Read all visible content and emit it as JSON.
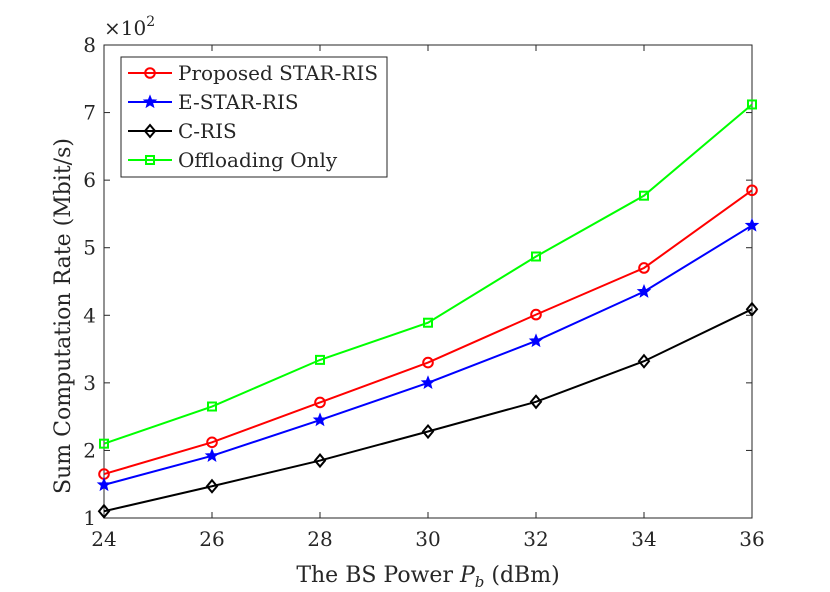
{
  "chart_data": {
    "type": "line",
    "title": "",
    "xlabel_prefix": "The BS Power ",
    "xlabel_var": "P",
    "xlabel_sub": "b",
    "xlabel_suffix": " (dBm)",
    "ylabel": "Sum Computation Rate (Mbit/s)",
    "y_multiplier": "×10",
    "y_multiplier_exp": "2",
    "x": [
      24,
      26,
      28,
      30,
      32,
      34,
      36
    ],
    "xlim": [
      24,
      36
    ],
    "ylim": [
      1,
      8
    ],
    "xticks": [
      "24",
      "26",
      "28",
      "30",
      "32",
      "34",
      "36"
    ],
    "yticks": [
      "1",
      "2",
      "3",
      "4",
      "5",
      "6",
      "7",
      "8"
    ],
    "legend_position": "top-left",
    "series": [
      {
        "name": "Proposed STAR-RIS",
        "color": "#ff0000",
        "marker": "circle",
        "values": [
          1.65,
          2.12,
          2.71,
          3.3,
          4.01,
          4.7,
          5.85
        ]
      },
      {
        "name": "E-STAR-RIS",
        "color": "#0000ff",
        "marker": "star",
        "values": [
          1.49,
          1.92,
          2.45,
          3.0,
          3.62,
          4.35,
          5.33
        ]
      },
      {
        "name": "C-RIS",
        "color": "#000000",
        "marker": "diamond",
        "values": [
          1.1,
          1.47,
          1.85,
          2.28,
          2.72,
          3.32,
          4.09
        ]
      },
      {
        "name": "Offloading Only",
        "color": "#00ff00",
        "marker": "square",
        "values": [
          2.1,
          2.65,
          3.34,
          3.89,
          4.87,
          5.77,
          7.12
        ]
      }
    ]
  }
}
